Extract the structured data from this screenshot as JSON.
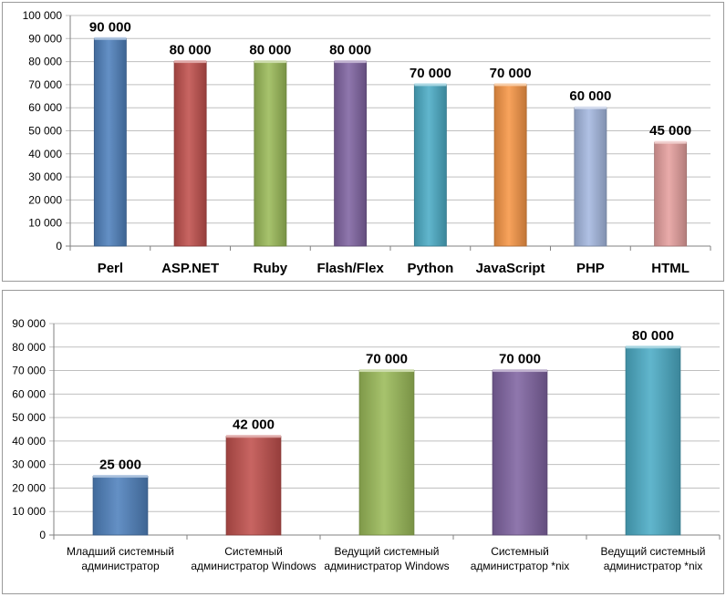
{
  "chart_data": [
    {
      "type": "bar",
      "categories": [
        "Perl",
        "ASP.NET",
        "Ruby",
        "Flash/Flex",
        "Python",
        "JavaScript",
        "PHP",
        "HTML"
      ],
      "values": [
        90000,
        80000,
        80000,
        80000,
        70000,
        70000,
        60000,
        45000
      ],
      "value_labels": [
        "90 000",
        "80 000",
        "80 000",
        "80 000",
        "70 000",
        "70 000",
        "60 000",
        "45 000"
      ],
      "colors": [
        "#4f81bd",
        "#c0504d",
        "#9bbb59",
        "#8064a2",
        "#4bacc6",
        "#f79646",
        "#a5b8e0",
        "#e6a09e"
      ],
      "ylim": [
        0,
        100000
      ],
      "yticks": [
        0,
        10000,
        20000,
        30000,
        40000,
        50000,
        60000,
        70000,
        80000,
        90000,
        100000
      ],
      "ytick_labels": [
        "0",
        "10 000",
        "20 000",
        "30 000",
        "40 000",
        "50 000",
        "60 000",
        "70 000",
        "80 000",
        "90 000",
        "100 000"
      ],
      "grid": true
    },
    {
      "type": "bar",
      "categories": [
        [
          "Младший системный",
          "администратор"
        ],
        [
          "Системный",
          "администратор  Windows"
        ],
        [
          "Ведущий системный",
          "администратор  Windows"
        ],
        [
          "Системный",
          "администратор  *nix"
        ],
        [
          "Ведущий системный",
          "администратор  *nix"
        ]
      ],
      "values": [
        25000,
        42000,
        70000,
        70000,
        80000
      ],
      "value_labels": [
        "25 000",
        "42 000",
        "70 000",
        "70 000",
        "80 000"
      ],
      "colors": [
        "#4f81bd",
        "#c0504d",
        "#9bbb59",
        "#8064a2",
        "#4bacc6"
      ],
      "ylim": [
        0,
        90000
      ],
      "yticks": [
        0,
        10000,
        20000,
        30000,
        40000,
        50000,
        60000,
        70000,
        80000,
        90000
      ],
      "ytick_labels": [
        "0",
        "10 000",
        "20 000",
        "30 000",
        "40 000",
        "50 000",
        "60 000",
        "70 000",
        "80 000",
        "90 000"
      ],
      "grid": true
    }
  ]
}
